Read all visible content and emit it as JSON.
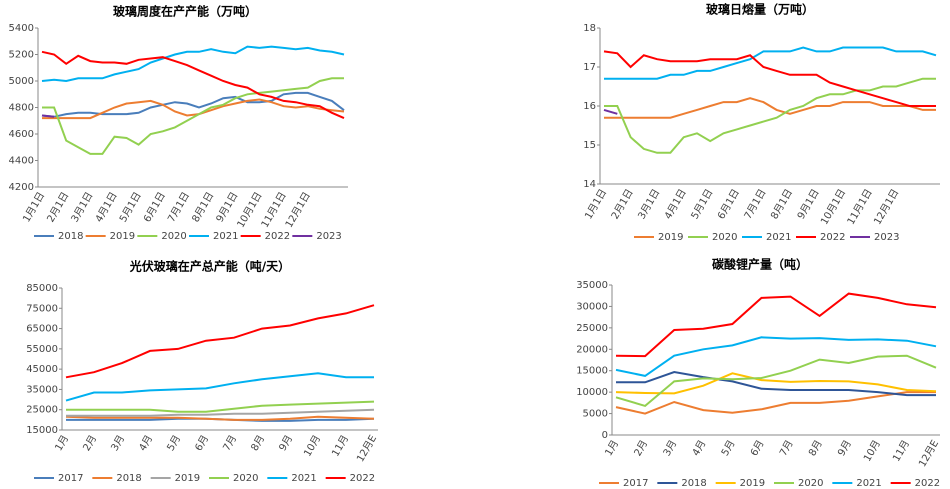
{
  "chart_data": [
    {
      "type": "line",
      "title": "玻璃周度在产产能（万吨）",
      "legend": "bottom",
      "categories": [
        "1月1日",
        null,
        "2月1日",
        null,
        "3月1日",
        null,
        "4月1日",
        null,
        "5月1日",
        null,
        "6月1日",
        null,
        "7月1日",
        null,
        "8月1日",
        null,
        "9月1日",
        null,
        "10月1日",
        null,
        "11月1日",
        null,
        "12月1日",
        null,
        null,
        null
      ],
      "ylim": [
        4200,
        5400
      ],
      "yticks": [
        4200,
        4400,
        4600,
        4800,
        5000,
        5200,
        5400
      ],
      "series": [
        {
          "name": "2018",
          "color": "#4a7ebb",
          "values": [
            4740,
            4730,
            4750,
            4760,
            4760,
            4750,
            4750,
            4750,
            4760,
            4800,
            4820,
            4840,
            4830,
            4800,
            4830,
            4870,
            4880,
            4840,
            4840,
            4850,
            4900,
            4910,
            4910,
            4880,
            4850,
            4780
          ]
        },
        {
          "name": "2019",
          "color": "#ed7d31",
          "values": [
            4720,
            4720,
            4720,
            4720,
            4720,
            4760,
            4800,
            4830,
            4840,
            4850,
            4820,
            4770,
            4740,
            4750,
            4780,
            4810,
            4830,
            4850,
            4860,
            4840,
            4810,
            4800,
            4810,
            4790,
            4780,
            4770
          ]
        },
        {
          "name": "2020",
          "color": "#92d050",
          "values": [
            4800,
            4800,
            4550,
            4500,
            4450,
            4450,
            4580,
            4570,
            4520,
            4600,
            4620,
            4650,
            4700,
            4750,
            4800,
            4820,
            4870,
            4900,
            4910,
            4920,
            4930,
            4940,
            4950,
            5000,
            5020,
            5020
          ]
        },
        {
          "name": "2021",
          "color": "#00b0f0",
          "values": [
            5000,
            5010,
            5000,
            5020,
            5020,
            5020,
            5050,
            5070,
            5090,
            5140,
            5170,
            5200,
            5220,
            5220,
            5240,
            5220,
            5210,
            5260,
            5250,
            5260,
            5250,
            5240,
            5250,
            5230,
            5220,
            5200
          ]
        },
        {
          "name": "2022",
          "color": "#ff0000",
          "values": [
            5220,
            5200,
            5130,
            5190,
            5150,
            5140,
            5140,
            5130,
            5160,
            5170,
            5180,
            5150,
            5120,
            5080,
            5040,
            5000,
            4970,
            4950,
            4900,
            4880,
            4850,
            4840,
            4820,
            4810,
            4760,
            4720
          ]
        },
        {
          "name": "2023",
          "color": "#7030a0",
          "values": [
            4740,
            4730,
            null,
            null,
            null,
            null,
            null,
            null,
            null,
            null,
            null,
            null,
            null,
            null,
            null,
            null,
            null,
            null,
            null,
            null,
            null,
            null,
            null,
            null,
            null,
            null
          ]
        }
      ]
    },
    {
      "type": "line",
      "title": "玻璃日熔量（万吨）",
      "legend": "bottom",
      "categories": [
        "1月1日",
        null,
        "2月1日",
        null,
        "3月1日",
        null,
        "4月1日",
        null,
        "5月1日",
        null,
        "6月1日",
        null,
        "7月1日",
        null,
        "8月1日",
        null,
        "9月1日",
        null,
        "10月1日",
        null,
        "11月1日",
        null,
        "12月1日",
        null,
        null,
        null
      ],
      "ylim": [
        14,
        18
      ],
      "yticks": [
        14,
        15,
        16,
        17,
        18
      ],
      "series": [
        {
          "name": "2019",
          "color": "#ed7d31",
          "values": [
            15.7,
            15.7,
            15.7,
            15.7,
            15.7,
            15.7,
            15.8,
            15.9,
            16.0,
            16.1,
            16.1,
            16.2,
            16.1,
            15.9,
            15.8,
            15.9,
            16.0,
            16.0,
            16.1,
            16.1,
            16.1,
            16.0,
            16.0,
            16.0,
            15.9,
            15.9
          ]
        },
        {
          "name": "2020",
          "color": "#92d050",
          "values": [
            16.0,
            16.0,
            15.2,
            14.9,
            14.8,
            14.8,
            15.2,
            15.3,
            15.1,
            15.3,
            15.4,
            15.5,
            15.6,
            15.7,
            15.9,
            16.0,
            16.2,
            16.3,
            16.3,
            16.4,
            16.4,
            16.5,
            16.5,
            16.6,
            16.7,
            16.7
          ]
        },
        {
          "name": "2021",
          "color": "#00b0f0",
          "values": [
            16.7,
            16.7,
            16.7,
            16.7,
            16.7,
            16.8,
            16.8,
            16.9,
            16.9,
            17.0,
            17.1,
            17.2,
            17.4,
            17.4,
            17.4,
            17.5,
            17.4,
            17.4,
            17.5,
            17.5,
            17.5,
            17.5,
            17.4,
            17.4,
            17.4,
            17.3
          ]
        },
        {
          "name": "2022",
          "color": "#ff0000",
          "values": [
            17.4,
            17.35,
            17.0,
            17.3,
            17.2,
            17.15,
            17.15,
            17.15,
            17.2,
            17.2,
            17.2,
            17.3,
            17.0,
            16.9,
            16.8,
            16.8,
            16.8,
            16.6,
            16.5,
            16.4,
            16.3,
            16.2,
            16.1,
            16.0,
            16.0,
            16.0
          ]
        },
        {
          "name": "2023",
          "color": "#7030a0",
          "values": [
            15.9,
            15.8,
            null,
            null,
            null,
            null,
            null,
            null,
            null,
            null,
            null,
            null,
            null,
            null,
            null,
            null,
            null,
            null,
            null,
            null,
            null,
            null,
            null,
            null,
            null,
            null
          ]
        }
      ]
    },
    {
      "type": "line",
      "title": "光伏玻璃在产总产能（吨/天）",
      "legend": "bottom",
      "categories": [
        "1月",
        "2月",
        "3月",
        "4月",
        "5月",
        "6月",
        "7月",
        "8月",
        "9月",
        "10月",
        "11月",
        "12月E"
      ],
      "ylim": [
        15000,
        85000
      ],
      "yticks": [
        15000,
        25000,
        35000,
        45000,
        55000,
        65000,
        75000,
        85000
      ],
      "series": [
        {
          "name": "2017",
          "color": "#4a7ebb",
          "values": [
            20000,
            20000,
            20000,
            20000,
            20500,
            20500,
            20000,
            19500,
            19500,
            20000,
            20000,
            20500
          ]
        },
        {
          "name": "2018",
          "color": "#ed7d31",
          "values": [
            21500,
            21000,
            21000,
            21000,
            21000,
            20500,
            20000,
            20000,
            20500,
            21500,
            21000,
            20500
          ]
        },
        {
          "name": "2019",
          "color": "#a5a5a5",
          "values": [
            22000,
            22000,
            22000,
            22000,
            22500,
            22500,
            23000,
            23000,
            23500,
            24000,
            24500,
            25000
          ]
        },
        {
          "name": "2020",
          "color": "#92d050",
          "values": [
            25000,
            25000,
            25000,
            25000,
            24000,
            24000,
            25500,
            27000,
            27500,
            28000,
            28500,
            29000
          ]
        },
        {
          "name": "2021",
          "color": "#00b0f0",
          "values": [
            29500,
            33500,
            33500,
            34500,
            35000,
            35500,
            38000,
            40000,
            41500,
            43000,
            41000,
            41000
          ]
        },
        {
          "name": "2022",
          "color": "#ff0000",
          "values": [
            41000,
            43500,
            48000,
            54000,
            55000,
            59000,
            60500,
            65000,
            66500,
            70000,
            72500,
            76500
          ]
        }
      ]
    },
    {
      "type": "line",
      "title": "碳酸锂产量（吨）",
      "legend": "bottom",
      "categories": [
        "1月",
        "2月",
        "3月",
        "4月",
        "5月",
        "6月",
        "7月",
        "8月",
        "9月",
        "10月",
        "11月",
        "12月E"
      ],
      "ylim": [
        0,
        35000
      ],
      "yticks": [
        0,
        5000,
        10000,
        15000,
        20000,
        25000,
        30000,
        35000
      ],
      "series": [
        {
          "name": "2017",
          "color": "#ed7d31",
          "values": [
            6500,
            5000,
            7700,
            5800,
            5200,
            6000,
            7500,
            7500,
            8000,
            9000,
            10000,
            10000
          ]
        },
        {
          "name": "2018",
          "color": "#2e5597",
          "values": [
            12300,
            12300,
            14700,
            13500,
            12500,
            10800,
            10500,
            10500,
            10500,
            10000,
            9300,
            9300
          ]
        },
        {
          "name": "2019",
          "color": "#ffc000",
          "values": [
            10000,
            9800,
            9700,
            11500,
            14400,
            12800,
            12400,
            12600,
            12500,
            11800,
            10500,
            10200
          ]
        },
        {
          "name": "2020",
          "color": "#92d050",
          "values": [
            8800,
            6800,
            12500,
            13200,
            13000,
            13300,
            15000,
            17600,
            16800,
            18300,
            18500,
            15700
          ]
        },
        {
          "name": "2021",
          "color": "#00b0f0",
          "values": [
            15200,
            13800,
            18500,
            20000,
            20900,
            22800,
            22500,
            22600,
            22200,
            22300,
            22000,
            20700
          ]
        },
        {
          "name": "2022",
          "color": "#ff0000",
          "values": [
            18500,
            18400,
            24500,
            24800,
            25900,
            32000,
            32300,
            27800,
            33000,
            32000,
            30500,
            29800
          ]
        }
      ]
    }
  ]
}
